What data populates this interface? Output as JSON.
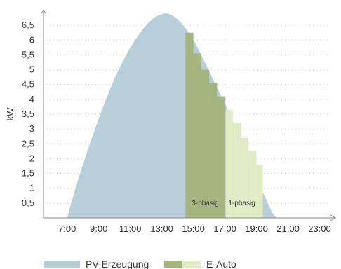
{
  "chart_data": {
    "type": "area",
    "ylabel": "kW",
    "xlabel": "",
    "ylim": [
      0,
      7
    ],
    "xlim": [
      5.5,
      24.0
    ],
    "x_ticks": [
      "7:00",
      "9:00",
      "11:00",
      "13:00",
      "15:00",
      "17:00",
      "19:00",
      "21:00",
      "23:00"
    ],
    "x_tick_values": [
      7,
      9,
      11,
      13,
      15,
      17,
      19,
      21,
      23
    ],
    "y_ticks": [
      "0,5",
      "1",
      "1,5",
      "2",
      "2,5",
      "3",
      "3,5",
      "4",
      "4,5",
      "5",
      "5,5",
      "6",
      "6,5"
    ],
    "y_tick_values": [
      0.5,
      1,
      1.5,
      2,
      2.5,
      3,
      3.5,
      4,
      4.5,
      5,
      5.5,
      6,
      6.5
    ],
    "grid": true,
    "series": [
      {
        "name": "PV-Erzeugung",
        "color": "#b8cfd9",
        "x": [
          7.0,
          7.5,
          8.0,
          8.5,
          9.0,
          9.5,
          10.0,
          10.5,
          11.0,
          11.5,
          12.0,
          12.5,
          13.0,
          13.3,
          13.6,
          14.0,
          14.5,
          15.0,
          15.5,
          16.0,
          16.5,
          17.0,
          17.5,
          18.0,
          18.5,
          19.0,
          19.5,
          20.0,
          20.3
        ],
        "values": [
          0.0,
          0.95,
          1.8,
          2.6,
          3.35,
          4.05,
          4.7,
          5.25,
          5.75,
          6.15,
          6.5,
          6.75,
          6.88,
          6.9,
          6.85,
          6.7,
          6.4,
          6.0,
          5.5,
          4.95,
          4.4,
          3.85,
          3.25,
          2.65,
          2.0,
          1.35,
          0.75,
          0.18,
          0.0
        ]
      },
      {
        "name": "E-Auto",
        "color_3phase": "#a4b57e",
        "color_1phase": "#e1ebc5",
        "steps": [
          {
            "x0": 14.5,
            "x1": 15.0,
            "y": 6.25
          },
          {
            "x0": 15.0,
            "x1": 15.5,
            "y": 5.55
          },
          {
            "x0": 15.5,
            "x1": 16.0,
            "y": 5.0
          },
          {
            "x0": 16.0,
            "x1": 16.5,
            "y": 4.55
          },
          {
            "x0": 16.5,
            "x1": 17.0,
            "y": 4.1
          },
          {
            "x0": 17.0,
            "x1": 17.5,
            "y": 3.65
          },
          {
            "x0": 17.5,
            "x1": 18.0,
            "y": 3.2
          },
          {
            "x0": 18.0,
            "x1": 18.5,
            "y": 2.7
          },
          {
            "x0": 18.5,
            "x1": 19.0,
            "y": 2.25
          },
          {
            "x0": 19.0,
            "x1": 19.4,
            "y": 1.8
          }
        ],
        "split_x": 17.0
      }
    ],
    "annotations": {
      "three_phase": "3-phasig",
      "one_phase": "1-phasig"
    },
    "legend": {
      "placement": "bottom",
      "items": [
        {
          "label": "PV-Erzeugung",
          "color": "#b8cfd9"
        },
        {
          "label": "E-Auto",
          "color_3phase": "#a4b57e",
          "color_1phase": "#e1ebc5"
        }
      ]
    }
  }
}
